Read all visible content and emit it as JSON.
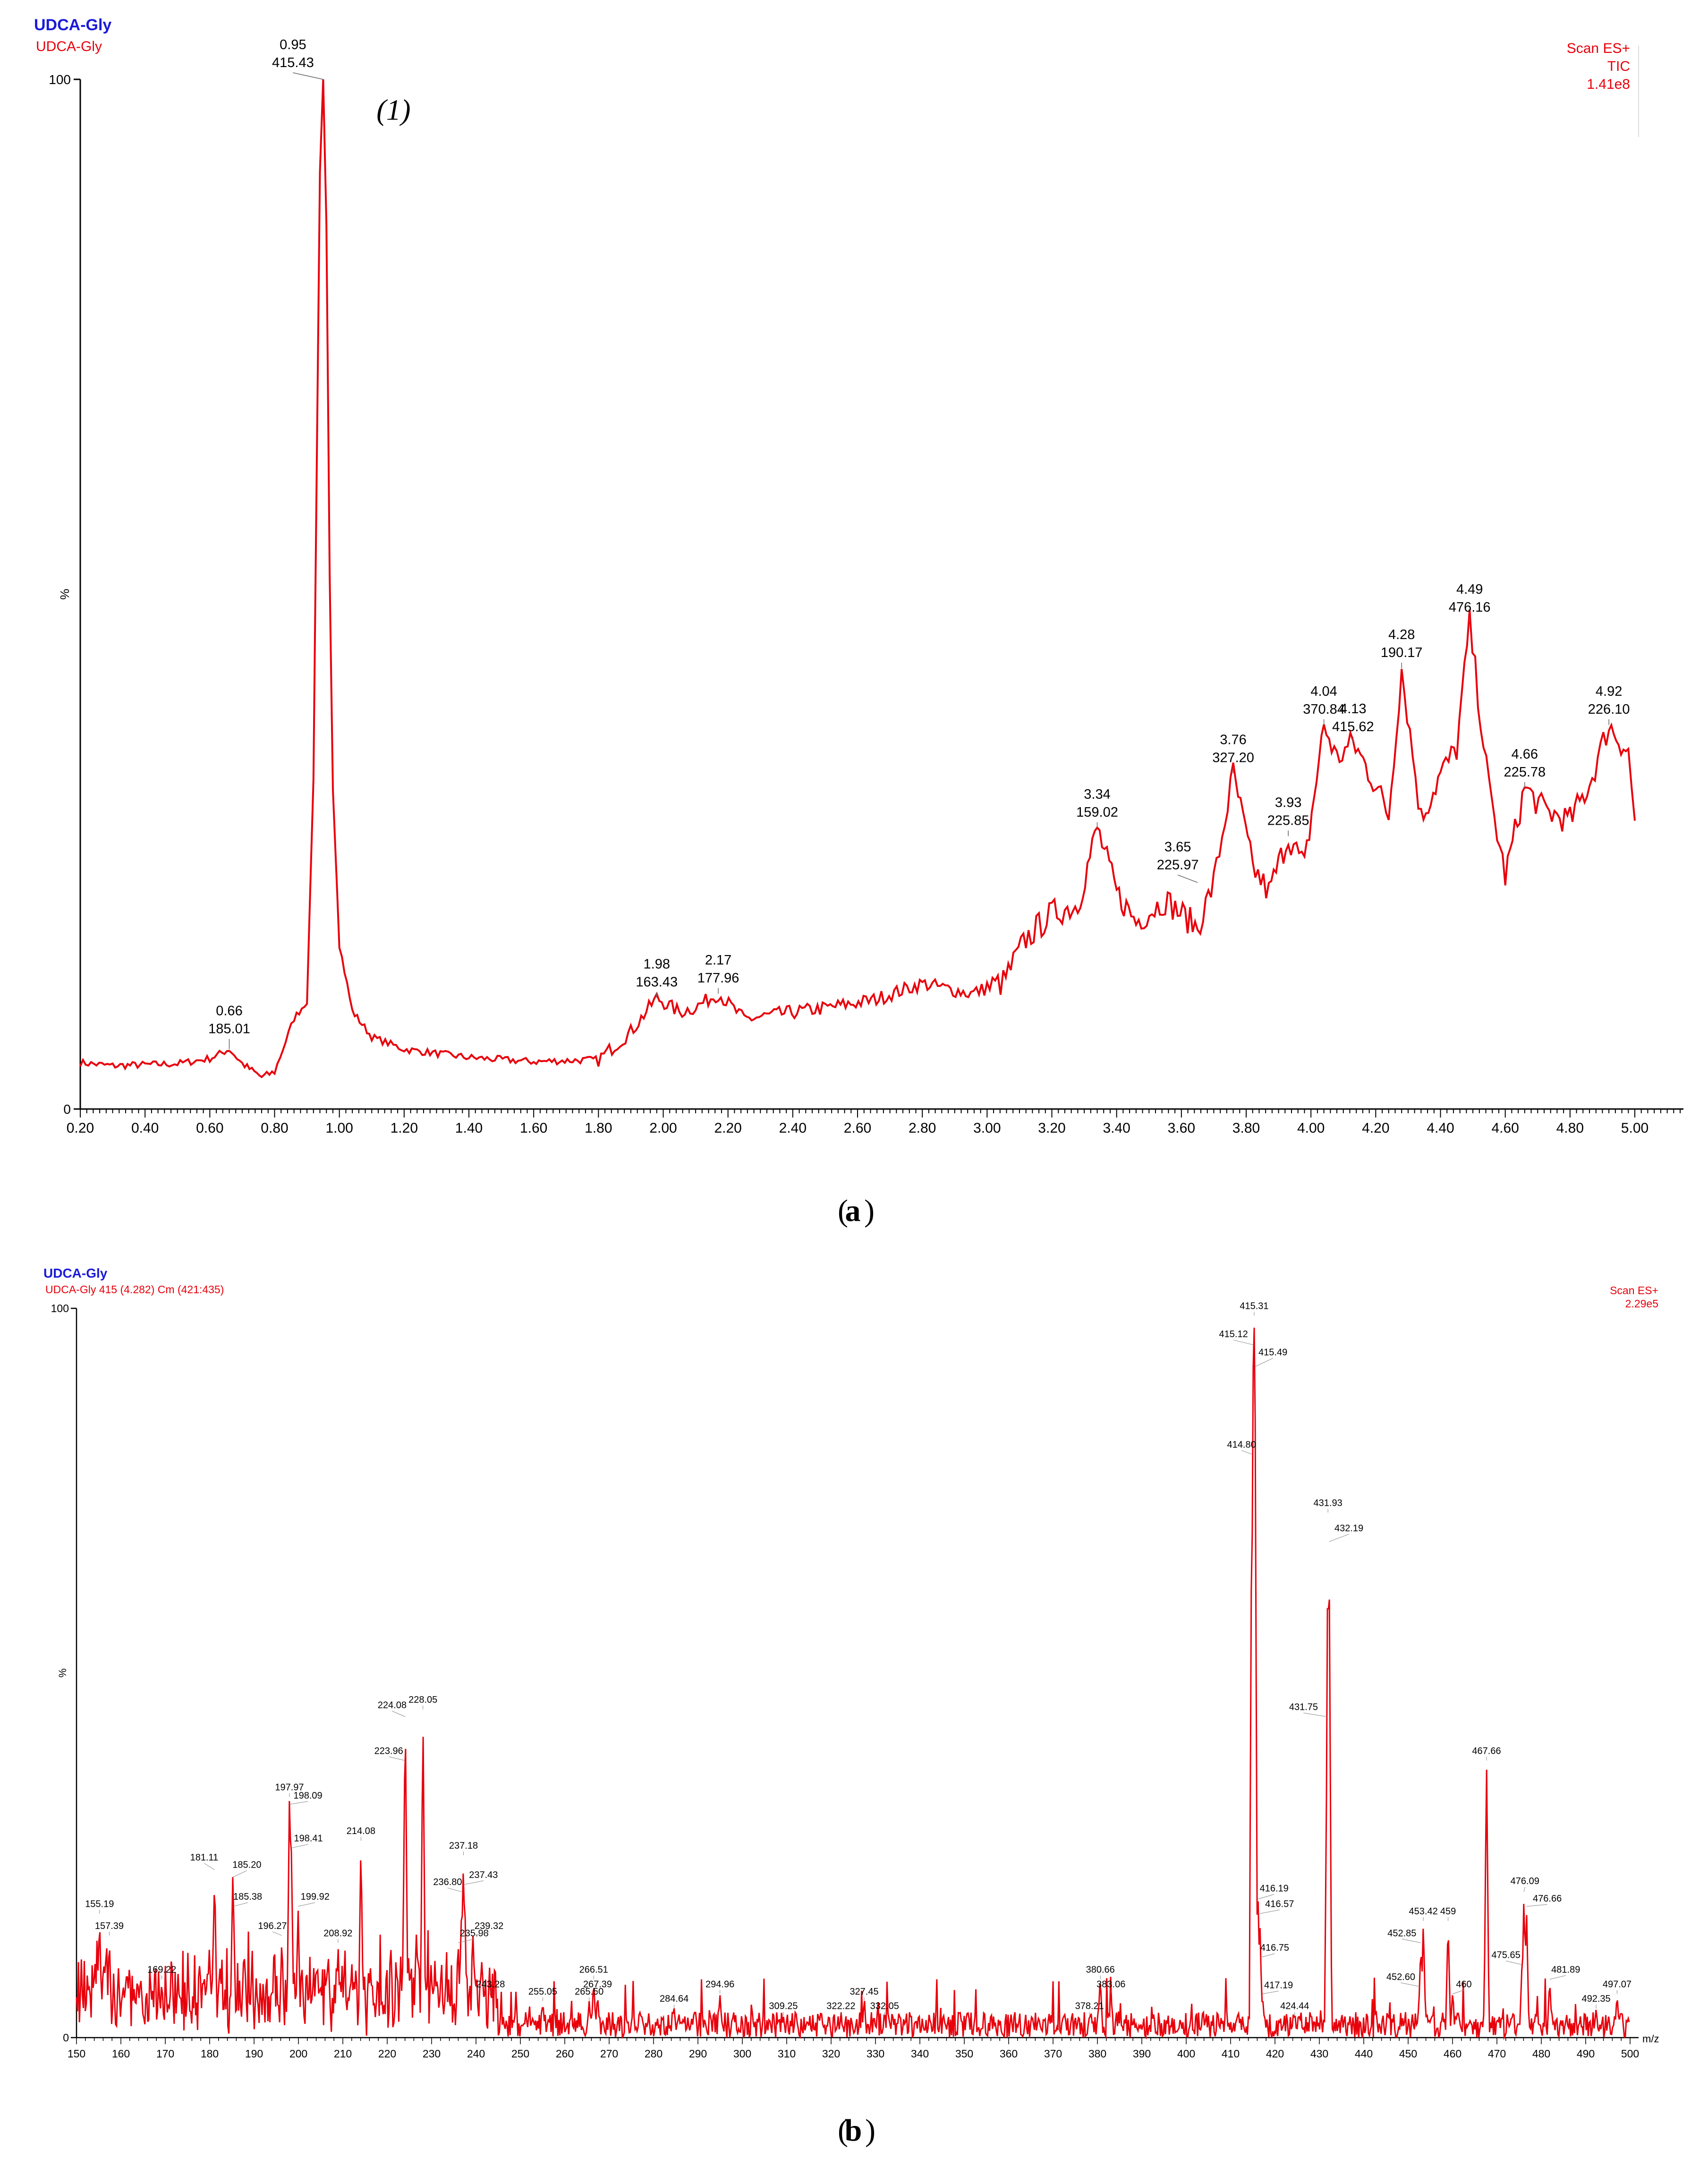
{
  "colors": {
    "trace": "#e8000b",
    "header_title": "#1a1ad8",
    "axis": "#000000",
    "label": "#000000",
    "background": "#ffffff"
  },
  "chart_data": [
    {
      "type": "line",
      "panel": "a",
      "header_title": "UDCA-Gly",
      "header_subtitle": "UDCA-Gly",
      "info_lines": [
        "Scan ES+",
        "TIC",
        "1.41e8"
      ],
      "ylabel": "%",
      "xlabel": "",
      "xlim": [
        0.2,
        5.0
      ],
      "ylim": [
        0,
        100
      ],
      "x_ticks": [
        "0.20",
        "0.40",
        "0.60",
        "0.80",
        "1.00",
        "1.20",
        "1.40",
        "1.60",
        "1.80",
        "2.00",
        "2.20",
        "2.40",
        "2.60",
        "2.80",
        "3.00",
        "3.20",
        "3.40",
        "3.60",
        "3.80",
        "4.00",
        "4.20",
        "4.40",
        "4.60",
        "4.80",
        "5.00"
      ],
      "x_tick_values": [
        0.2,
        0.4,
        0.6,
        0.8,
        1.0,
        1.2,
        1.4,
        1.6,
        1.8,
        2.0,
        2.2,
        2.4,
        2.6,
        2.8,
        3.0,
        3.2,
        3.4,
        3.6,
        3.8,
        4.0,
        4.2,
        4.4,
        4.6,
        4.8,
        5.0
      ],
      "y_tick_labels": [
        "0",
        "100"
      ],
      "y_tick_values": [
        0,
        100
      ],
      "annotation": "(1)",
      "annotation_x": 1.1,
      "annotation_y": 97,
      "caption": "a",
      "series": [
        {
          "x": [
            0.2,
            0.3,
            0.4,
            0.5,
            0.6,
            0.66,
            0.7,
            0.76,
            0.8,
            0.86,
            0.9,
            0.92,
            0.93,
            0.94,
            0.95,
            0.96,
            0.97,
            0.98,
            1.0,
            1.04,
            1.1,
            1.2,
            1.4,
            1.6,
            1.8,
            1.9,
            1.98,
            2.05,
            2.1,
            2.17,
            2.25,
            2.35,
            2.5,
            2.65,
            2.8,
            2.95,
            3.05,
            3.12,
            3.2,
            3.28,
            3.34,
            3.4,
            3.46,
            3.55,
            3.65,
            3.7,
            3.76,
            3.82,
            3.87,
            3.93,
            3.98,
            4.04,
            4.08,
            4.13,
            4.2,
            4.24,
            4.28,
            4.34,
            4.4,
            4.45,
            4.49,
            4.55,
            4.6,
            4.66,
            4.72,
            4.8,
            4.86,
            4.92,
            4.98,
            5.0
          ],
          "y": [
            4.5,
            4.2,
            4.3,
            4.4,
            4.9,
            5.8,
            4.4,
            3.1,
            3.6,
            8.8,
            10.5,
            32,
            62,
            91,
            100,
            86,
            52,
            31,
            16,
            9.5,
            7.0,
            5.8,
            5.0,
            4.6,
            4.8,
            7.5,
            10.8,
            9.4,
            9.9,
            11.2,
            8.7,
            9.2,
            9.8,
            10.6,
            12.2,
            11.2,
            12.3,
            16.5,
            19.0,
            19.8,
            27.3,
            21.0,
            18.2,
            20.3,
            17.6,
            22.0,
            32.6,
            23.5,
            21.0,
            26.5,
            23.5,
            37.3,
            34.0,
            35.6,
            31.5,
            28.5,
            42.8,
            28.2,
            32.5,
            35.0,
            47.2,
            31.0,
            22.6,
            31.2,
            29.0,
            28.0,
            31.5,
            37.3,
            34.6,
            28.0
          ]
        }
      ],
      "peak_labels": [
        {
          "x": 0.66,
          "y": 5.8,
          "rt": "0.66",
          "val": "185.01"
        },
        {
          "x": 0.95,
          "y": 100,
          "rt": "0.95",
          "val": "415.43"
        },
        {
          "x": 1.98,
          "y": 10.8,
          "rt": "1.98",
          "val": "163.43"
        },
        {
          "x": 2.17,
          "y": 11.2,
          "rt": "2.17",
          "val": "177.96"
        },
        {
          "x": 3.34,
          "y": 27.3,
          "rt": "3.34",
          "val": "159.02"
        },
        {
          "x": 3.65,
          "y": 22.0,
          "rt": "3.65",
          "val": "225.97"
        },
        {
          "x": 3.76,
          "y": 32.6,
          "rt": "3.76",
          "val": "327.20"
        },
        {
          "x": 3.93,
          "y": 26.5,
          "rt": "3.93",
          "val": "225.85"
        },
        {
          "x": 4.04,
          "y": 37.3,
          "rt": "4.04",
          "val": "370.84"
        },
        {
          "x": 4.13,
          "y": 35.6,
          "rt": "4.13",
          "val": "415.62"
        },
        {
          "x": 4.28,
          "y": 42.8,
          "rt": "4.28",
          "val": "190.17"
        },
        {
          "x": 4.49,
          "y": 47.2,
          "rt": "4.49",
          "val": "476.16"
        },
        {
          "x": 4.66,
          "y": 31.2,
          "rt": "4.66",
          "val": "225.78"
        },
        {
          "x": 4.92,
          "y": 37.3,
          "rt": "4.92",
          "val": "226.10"
        }
      ]
    },
    {
      "type": "line",
      "panel": "b",
      "header_title": "UDCA-Gly",
      "header_subtitle": "UDCA-Gly 415 (4.282) Cm (421:435)",
      "info_lines": [
        "Scan ES+",
        "2.29e5"
      ],
      "ylabel": "%",
      "xlabel": "m/z",
      "xlim": [
        150,
        500
      ],
      "ylim": [
        0,
        100
      ],
      "x_ticks": [
        "150",
        "160",
        "170",
        "180",
        "190",
        "200",
        "210",
        "220",
        "230",
        "240",
        "250",
        "260",
        "270",
        "280",
        "290",
        "300",
        "310",
        "320",
        "330",
        "340",
        "350",
        "360",
        "370",
        "380",
        "390",
        "400",
        "410",
        "420",
        "430",
        "440",
        "450",
        "460",
        "470",
        "480",
        "490",
        "500"
      ],
      "x_tick_values": [
        150,
        160,
        170,
        180,
        190,
        200,
        210,
        220,
        230,
        240,
        250,
        260,
        270,
        280,
        290,
        300,
        310,
        320,
        330,
        340,
        350,
        360,
        370,
        380,
        390,
        400,
        410,
        420,
        430,
        440,
        450,
        460,
        470,
        480,
        490,
        500
      ],
      "y_tick_labels": [
        "0",
        "100"
      ],
      "y_tick_values": [
        0,
        100
      ],
      "caption": "b",
      "series": [
        {
          "peaks_x": [
            155.19,
            157.39,
            169.22,
            181.11,
            185.2,
            185.38,
            196.27,
            197.97,
            198.09,
            198.41,
            199.92,
            208.92,
            214.08,
            223.96,
            224.08,
            228.05,
            235.98,
            236.8,
            237.18,
            237.43,
            239.32,
            243.28,
            255.05,
            265.5,
            266.51,
            267.39,
            284.64,
            294.96,
            309.25,
            322.22,
            327.45,
            332.05,
            378.21,
            380.66,
            383.06,
            414.8,
            415.12,
            415.31,
            415.49,
            416.19,
            416.57,
            416.75,
            417.19,
            424.44,
            431.75,
            431.93,
            432.19,
            452.6,
            452.85,
            453.42,
            459,
            460,
            467.66,
            475.65,
            476.09,
            476.66,
            481.89,
            492.35,
            497.07
          ],
          "peaks_y": [
            17,
            14,
            8,
            23,
            22,
            18,
            14,
            33,
            32,
            26,
            18,
            13,
            27,
            38,
            44,
            45,
            13,
            20,
            25,
            21,
            14,
            6,
            5,
            5,
            8,
            6,
            4,
            6,
            3,
            3,
            5,
            3,
            3,
            8,
            6,
            80,
            95,
            99,
            92,
            19,
            17,
            11,
            6,
            3,
            44,
            72,
            68,
            7,
            13,
            16,
            16,
            6,
            38,
            10,
            20,
            18,
            8,
            4,
            6
          ],
          "noise_level": 3.5
        }
      ],
      "peak_labels": [
        {
          "x": 155.19,
          "y": 17,
          "val": "155.19"
        },
        {
          "x": 157.39,
          "y": 14,
          "val": "157.39"
        },
        {
          "x": 169.22,
          "y": 8,
          "val": "169.22"
        },
        {
          "x": 181.11,
          "y": 23,
          "val": "181.11"
        },
        {
          "x": 185.2,
          "y": 22,
          "val": "185.20"
        },
        {
          "x": 185.38,
          "y": 18,
          "val": "185.38"
        },
        {
          "x": 196.27,
          "y": 14,
          "val": "196.27"
        },
        {
          "x": 197.97,
          "y": 33,
          "val": "197.97"
        },
        {
          "x": 198.09,
          "y": 32,
          "val": "198.09"
        },
        {
          "x": 198.41,
          "y": 26,
          "val": "198.41"
        },
        {
          "x": 199.92,
          "y": 18,
          "val": "199.92"
        },
        {
          "x": 208.92,
          "y": 13,
          "val": "208.92"
        },
        {
          "x": 214.08,
          "y": 27,
          "val": "214.08"
        },
        {
          "x": 223.96,
          "y": 38,
          "val": "223.96"
        },
        {
          "x": 224.08,
          "y": 44,
          "val": "224.08"
        },
        {
          "x": 228.05,
          "y": 45,
          "val": "228.05"
        },
        {
          "x": 235.98,
          "y": 13,
          "val": "235.98"
        },
        {
          "x": 236.8,
          "y": 20,
          "val": "236.80"
        },
        {
          "x": 237.18,
          "y": 25,
          "val": "237.18"
        },
        {
          "x": 237.43,
          "y": 21,
          "val": "237.43"
        },
        {
          "x": 239.32,
          "y": 14,
          "val": "239.32"
        },
        {
          "x": 243.28,
          "y": 6,
          "val": "243.28"
        },
        {
          "x": 255.05,
          "y": 5,
          "val": "255.05"
        },
        {
          "x": 265.5,
          "y": 5,
          "val": "265.50"
        },
        {
          "x": 266.51,
          "y": 8,
          "val": "266.51"
        },
        {
          "x": 267.39,
          "y": 6,
          "val": "267.39"
        },
        {
          "x": 284.64,
          "y": 4,
          "val": "284.64"
        },
        {
          "x": 294.96,
          "y": 6,
          "val": "294.96"
        },
        {
          "x": 309.25,
          "y": 3,
          "val": "309.25"
        },
        {
          "x": 322.22,
          "y": 3,
          "val": "322.22"
        },
        {
          "x": 327.45,
          "y": 5,
          "val": "327.45"
        },
        {
          "x": 332.05,
          "y": 3,
          "val": "332.05"
        },
        {
          "x": 378.21,
          "y": 3,
          "val": "378.21"
        },
        {
          "x": 380.66,
          "y": 8,
          "val": "380.66"
        },
        {
          "x": 383.06,
          "y": 6,
          "val": "383.06"
        },
        {
          "x": 414.8,
          "y": 80,
          "val": "414.80"
        },
        {
          "x": 415.12,
          "y": 95,
          "val": "415.12"
        },
        {
          "x": 415.31,
          "y": 99,
          "val": "415.31"
        },
        {
          "x": 415.49,
          "y": 92,
          "val": "415.49"
        },
        {
          "x": 416.19,
          "y": 19,
          "val": "416.19"
        },
        {
          "x": 416.57,
          "y": 17,
          "val": "416.57"
        },
        {
          "x": 416.75,
          "y": 11,
          "val": "416.75"
        },
        {
          "x": 417.19,
          "y": 6,
          "val": "417.19"
        },
        {
          "x": 424.44,
          "y": 3,
          "val": "424.44"
        },
        {
          "x": 431.75,
          "y": 44,
          "val": "431.75"
        },
        {
          "x": 431.93,
          "y": 72,
          "val": "431.93"
        },
        {
          "x": 432.19,
          "y": 68,
          "val": "432.19"
        },
        {
          "x": 452.6,
          "y": 7,
          "val": "452.60"
        },
        {
          "x": 452.85,
          "y": 13,
          "val": "452.85"
        },
        {
          "x": 453.42,
          "y": 16,
          "val": "453.42"
        },
        {
          "x": 459,
          "y": 16,
          "val": "459"
        },
        {
          "x": 460,
          "y": 6,
          "val": "460"
        },
        {
          "x": 467.66,
          "y": 38,
          "val": "467.66"
        },
        {
          "x": 475.65,
          "y": 10,
          "val": "475.65"
        },
        {
          "x": 476.09,
          "y": 20,
          "val": "476.09"
        },
        {
          "x": 476.66,
          "y": 18,
          "val": "476.66"
        },
        {
          "x": 481.89,
          "y": 8,
          "val": "481.89"
        },
        {
          "x": 492.35,
          "y": 4,
          "val": "492.35"
        },
        {
          "x": 497.07,
          "y": 6,
          "val": "497.07"
        }
      ]
    }
  ]
}
